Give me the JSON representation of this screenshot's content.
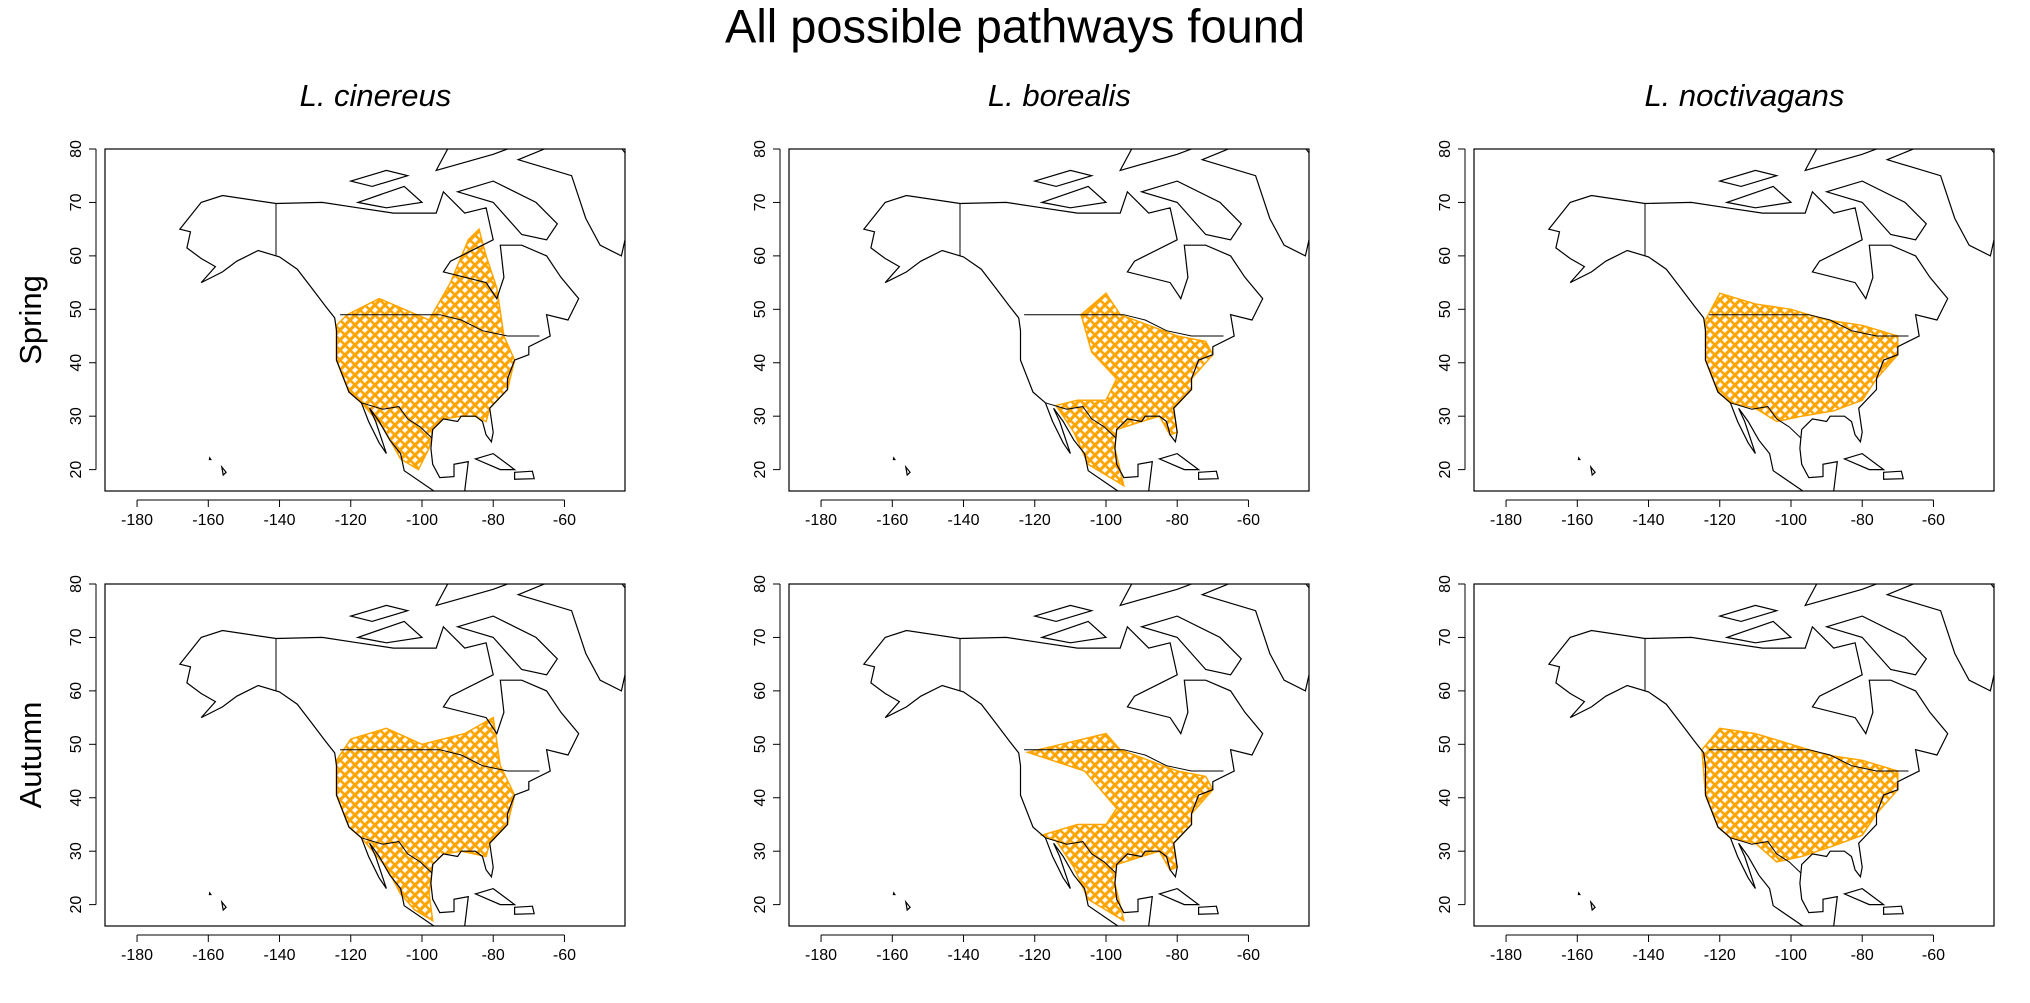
{
  "title": "All possible pathways found",
  "columns": [
    "L. cinereus",
    "L. borealis",
    "L. noctivagans"
  ],
  "rows": [
    "Spring",
    "Autumn"
  ],
  "axes": {
    "xlim": [
      -189,
      -43
    ],
    "ylim": [
      16,
      80
    ],
    "xticks": [
      -180,
      -160,
      -140,
      -120,
      -100,
      -80,
      -60
    ],
    "yticks": [
      20,
      30,
      40,
      50,
      60,
      70,
      80
    ]
  },
  "pathway_color": "#ffa500"
}
